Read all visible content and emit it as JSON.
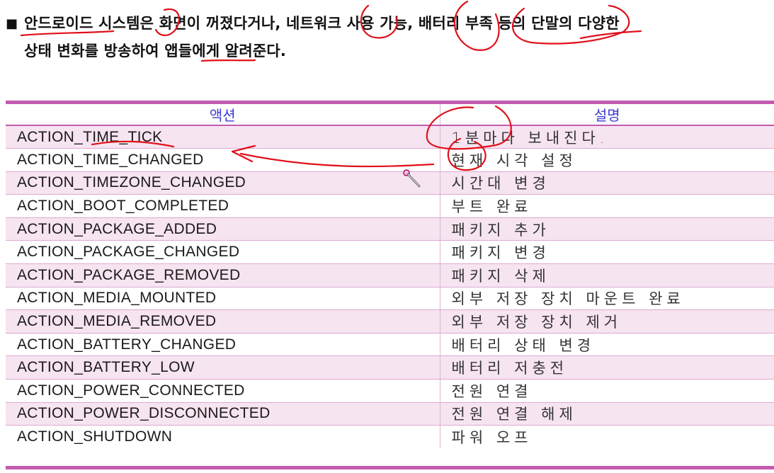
{
  "intro": {
    "bullet": "■",
    "line1": "안드로이드 시스템은 화면이 꺼졌다거나, 네트워크 사용 가능, 배터리 부족 등의 단말의 다양한",
    "line2": "상태 변화를 방송하여 앱들에게 알려준다."
  },
  "table": {
    "headers": {
      "action": "액션",
      "description": "설명"
    },
    "rows": [
      {
        "action": "ACTION_TIME_TICK",
        "description": "1분마다 보내진다."
      },
      {
        "action": "ACTION_TIME_CHANGED",
        "description": "현재 시각 설정"
      },
      {
        "action": "ACTION_TIMEZONE_CHANGED",
        "description": "시간대 변경"
      },
      {
        "action": "ACTION_BOOT_COMPLETED",
        "description": "부트 완료"
      },
      {
        "action": "ACTION_PACKAGE_ADDED",
        "description": "패키지 추가"
      },
      {
        "action": "ACTION_PACKAGE_CHANGED",
        "description": "패키지 변경"
      },
      {
        "action": "ACTION_PACKAGE_REMOVED",
        "description": "패키지 삭제"
      },
      {
        "action": "ACTION_MEDIA_MOUNTED",
        "description": "외부 저장 장치 마운트 완료"
      },
      {
        "action": "ACTION_MEDIA_REMOVED",
        "description": "외부 저장 장치 제거"
      },
      {
        "action": "ACTION_BATTERY_CHANGED",
        "description": "배터리 상태 변경"
      },
      {
        "action": "ACTION_BATTERY_LOW",
        "description": "배터리 저충전"
      },
      {
        "action": "ACTION_POWER_CONNECTED",
        "description": "전원 연결"
      },
      {
        "action": "ACTION_POWER_DISCONNECTED",
        "description": "전원 연결 해제"
      },
      {
        "action": "ACTION_SHUTDOWN",
        "description": "파워 오프"
      }
    ]
  },
  "colors": {
    "accent_rule": "#c35bb0",
    "row_shade": "#f7e4f1",
    "header_text": "#3d3ad6",
    "annotation_ink": "#e0101a"
  },
  "icons": {
    "cursor": "pointer-cursor-icon"
  }
}
